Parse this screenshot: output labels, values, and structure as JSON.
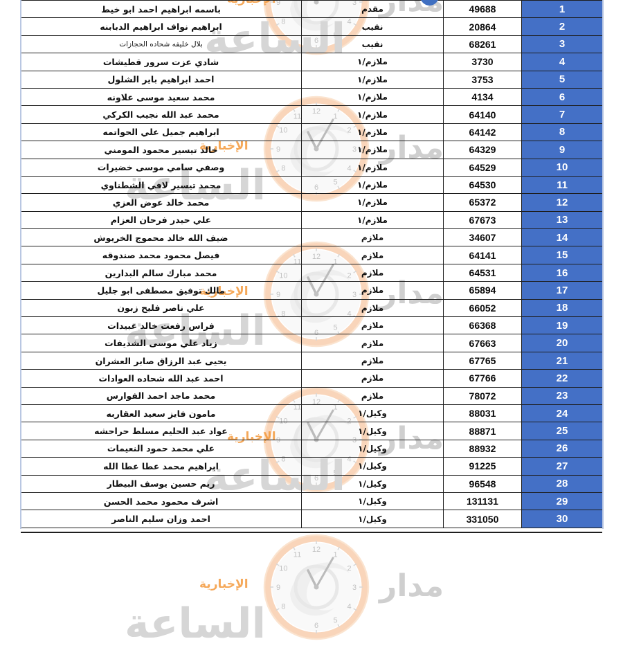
{
  "document": {
    "language": "ar",
    "direction": "rtl"
  },
  "table": {
    "rows": [
      {
        "serial": "1",
        "number": "49688",
        "rank": "مقدم",
        "name": "باسمه ابراهيم احمد ابو خيط"
      },
      {
        "serial": "2",
        "number": "20864",
        "rank": "نقيب",
        "name": "ابراهيم نواف ابراهيم الدبابنه"
      },
      {
        "serial": "3",
        "number": "68261",
        "rank": "نقيب",
        "name": "بلال خليفه شحاده الحجازات"
      },
      {
        "serial": "4",
        "number": "3730",
        "rank": "ملازم/١",
        "name": "شادي عزت سرور قطيشات"
      },
      {
        "serial": "5",
        "number": "3753",
        "rank": "ملازم/١",
        "name": "احمد ابراهيم باير الشلول"
      },
      {
        "serial": "6",
        "number": "4134",
        "rank": "ملازم/١",
        "name": "محمد سعيد موسى علاونه"
      },
      {
        "serial": "7",
        "number": "64140",
        "rank": "ملازم/١",
        "name": "محمد عبد الله نجيب الكركي"
      },
      {
        "serial": "8",
        "number": "64142",
        "rank": "ملازم/١",
        "name": "ابراهيم جميل علي الحواتمه"
      },
      {
        "serial": "9",
        "number": "64329",
        "rank": "ملازم/١",
        "name": "خالد تيسير محمود المومني"
      },
      {
        "serial": "10",
        "number": "64529",
        "rank": "ملازم/١",
        "name": "وصفي سامي موسى خضيرات"
      },
      {
        "serial": "11",
        "number": "64530",
        "rank": "ملازم/١",
        "name": "محمد تيسير لافي الشطناوي"
      },
      {
        "serial": "12",
        "number": "65372",
        "rank": "ملازم/١",
        "name": "محمد خالد عوض العزي"
      },
      {
        "serial": "13",
        "number": "67673",
        "rank": "ملازم/١",
        "name": "علي حيدر فرحان العزام"
      },
      {
        "serial": "14",
        "number": "34607",
        "rank": "ملازم",
        "name": "ضيف الله خالد محموج الخريوش"
      },
      {
        "serial": "15",
        "number": "64141",
        "rank": "ملازم",
        "name": "فيصل محمود محمد صندوقه"
      },
      {
        "serial": "16",
        "number": "64531",
        "rank": "ملازم",
        "name": "محمد مبارك سالم البدارين"
      },
      {
        "serial": "17",
        "number": "65894",
        "rank": "ملازم",
        "name": "مالك توفيق مصطفى ابو جليل"
      },
      {
        "serial": "18",
        "number": "66052",
        "rank": "ملازم",
        "name": "علي ناصر فليح زبون"
      },
      {
        "serial": "19",
        "number": "66368",
        "rank": "ملازم",
        "name": "فراس رفعت خالد عبيدات"
      },
      {
        "serial": "20",
        "number": "67663",
        "rank": "ملازم",
        "name": "زياد علي موسى الشديفات"
      },
      {
        "serial": "21",
        "number": "67765",
        "rank": "ملازم",
        "name": "يحيى عبد الرزاق صابر العشران"
      },
      {
        "serial": "22",
        "number": "67766",
        "rank": "ملازم",
        "name": "احمد عبد الله شحاده العوادات"
      },
      {
        "serial": "23",
        "number": "78072",
        "rank": "ملازم",
        "name": "محمد ماجد احمد الفوارس"
      },
      {
        "serial": "24",
        "number": "88031",
        "rank": "وكيل/١",
        "name": "مامون فايز سعيد العقاربه"
      },
      {
        "serial": "25",
        "number": "88871",
        "rank": "وكيل/١",
        "name": "عواد عبد الحليم مسلط حراحشه"
      },
      {
        "serial": "26",
        "number": "88932",
        "rank": "وكيل/١",
        "name": "علي محمد حمود النعيمات"
      },
      {
        "serial": "27",
        "number": "91225",
        "rank": "وكيل/١",
        "name": "ابراهيم محمد عطا عطا الله"
      },
      {
        "serial": "28",
        "number": "96548",
        "rank": "وكيل/١",
        "name": "ريم حسين يوسف البيطار"
      },
      {
        "serial": "29",
        "number": "131131",
        "rank": "وكيل/١",
        "name": "اشرف محمود محمد الحسن"
      },
      {
        "serial": "30",
        "number": "331050",
        "rank": "وكيل/١",
        "name": "احمد وزان سليم الناصر"
      }
    ]
  },
  "watermark": {
    "brand_word_1": "مدار",
    "brand_word_2": "الساعة",
    "tagline": "الإخبارية",
    "clock_numbers": [
      "12",
      "1",
      "2",
      "3",
      "4",
      "5",
      "6",
      "8",
      "9",
      "10",
      "11"
    ]
  },
  "colors": {
    "serial_column_bg": "#4470C6",
    "serial_column_text": "#FFFFFF",
    "table_border": "#1E1E1E",
    "watermark_grey": "#D4D4D4",
    "watermark_orange": "#F49A3D",
    "clock_ring_orange": "#F2A870"
  }
}
